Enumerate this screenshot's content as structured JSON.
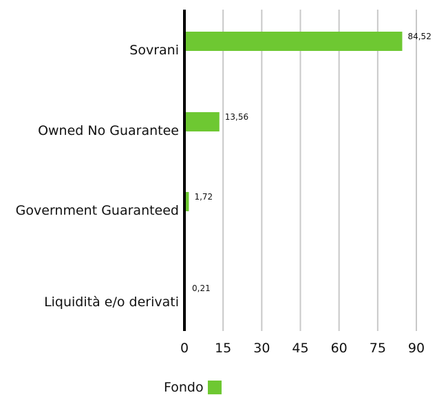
{
  "chart_data": {
    "type": "bar",
    "orientation": "horizontal",
    "categories": [
      "Sovrani",
      "Owned No Guarantee",
      "Government Guaranteed",
      "Liquidità e/o derivati"
    ],
    "series": [
      {
        "name": "Fondo",
        "values": [
          84.52,
          13.56,
          1.72,
          0.21
        ],
        "data_labels": [
          "84,52",
          "13,56",
          "1,72",
          "0,21"
        ]
      }
    ],
    "xlim": [
      0,
      90
    ],
    "x_ticks": [
      0,
      15,
      30,
      45,
      60,
      75,
      90
    ],
    "x_tick_labels": [
      "0",
      "15",
      "30",
      "45",
      "60",
      "75",
      "90"
    ],
    "grid": "vertical",
    "legend_position": "bottom",
    "colors": {
      "bar": "#6ec832",
      "grid": "#c8c8c8",
      "axis": "#000000"
    }
  }
}
